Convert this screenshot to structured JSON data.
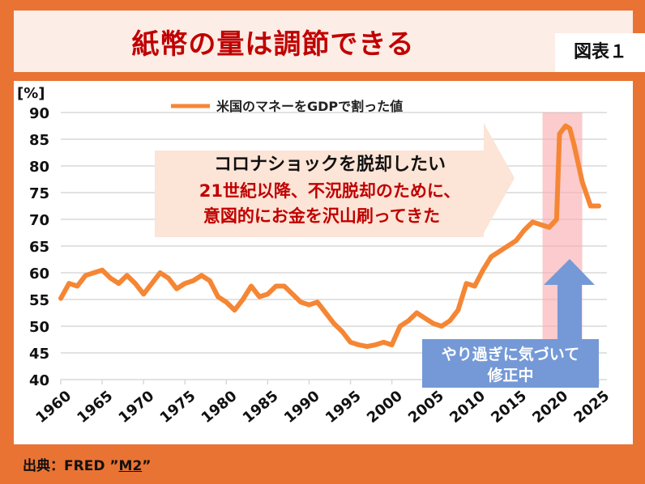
{
  "header": {
    "title": "紙幣の量は調節できる",
    "figure_label": "図表１"
  },
  "footer": {
    "source_prefix": "出典：FRED ”",
    "source_link": "M2",
    "source_suffix": "”"
  },
  "annotations": {
    "callout_line1": "コロナショックを脱却したい",
    "callout_line2": "21世紀以降、不況脱却のために、",
    "callout_line3": "意図的にお金を沢山刷ってきた",
    "correction_line1": "やり過ぎに気づいて",
    "correction_line2": "修正中"
  },
  "colors": {
    "line": "#F58634",
    "band": "#F9A8AC",
    "arrow": "#7499D6",
    "title": "#C00000",
    "frame": "#E97333"
  },
  "chart_data": {
    "type": "line",
    "ylabel": "[%]",
    "ylim": [
      40,
      90
    ],
    "xlim": [
      1960,
      2025
    ],
    "yticks": [
      40,
      45,
      50,
      55,
      60,
      65,
      70,
      75,
      80,
      85,
      90
    ],
    "xticks": [
      1960,
      1965,
      1970,
      1975,
      1980,
      1985,
      1990,
      1995,
      2000,
      2005,
      2010,
      2015,
      2020,
      2025
    ],
    "grid": true,
    "legend": "top-center",
    "highlight_range": [
      2018.2,
      2023
    ],
    "series": [
      {
        "name": "米国のマネーをGDPで割った値",
        "x": [
          1960,
          1961,
          1962,
          1963,
          1964,
          1965,
          1966,
          1967,
          1968,
          1969,
          1970,
          1971,
          1972,
          1973,
          1974,
          1975,
          1976,
          1977,
          1978,
          1979,
          1980,
          1981,
          1982,
          1983,
          1984,
          1985,
          1986,
          1987,
          1988,
          1989,
          1990,
          1991,
          1992,
          1993,
          1994,
          1995,
          1996,
          1997,
          1998,
          1999,
          2000,
          2001,
          2002,
          2003,
          2004,
          2005,
          2006,
          2007,
          2008,
          2009,
          2010,
          2011,
          2012,
          2013,
          2014,
          2015,
          2016,
          2017,
          2018,
          2019,
          2019.9,
          2020.25,
          2021,
          2021.5,
          2022,
          2023,
          2024,
          2025
        ],
        "y": [
          55.2,
          58,
          57.5,
          59.5,
          60,
          60.5,
          59,
          58,
          59.5,
          58,
          56,
          58,
          60,
          59,
          57,
          58,
          58.5,
          59.5,
          58.5,
          55.5,
          54.5,
          53,
          55,
          57.5,
          55.5,
          56,
          57.5,
          57.5,
          56,
          54.5,
          54,
          54.5,
          52.5,
          50.5,
          49,
          47,
          46.5,
          46.2,
          46.5,
          47,
          46.5,
          50,
          51,
          52.5,
          51.5,
          50.5,
          50,
          51,
          53,
          58,
          57.5,
          60.5,
          63,
          64,
          65,
          66,
          68,
          69.5,
          69,
          68.5,
          70,
          86,
          87.5,
          87,
          84,
          77,
          72.5,
          72.5
        ]
      }
    ]
  }
}
